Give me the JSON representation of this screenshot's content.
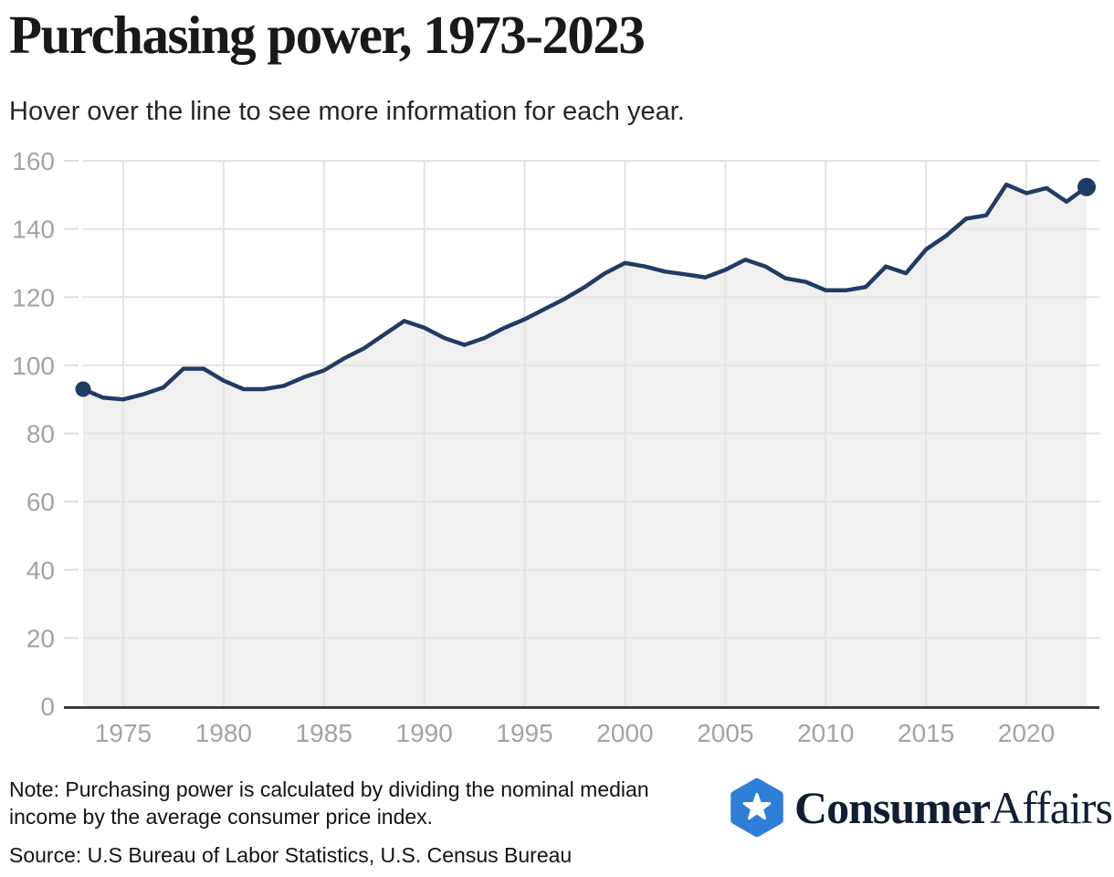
{
  "header": {
    "title": "Purchasing power, 1973-2023",
    "subtitle": "Hover over the line to see more information for each year."
  },
  "chart_data": {
    "type": "area",
    "title": "Purchasing power, 1973-2023",
    "x": [
      1973,
      1974,
      1975,
      1976,
      1977,
      1978,
      1979,
      1980,
      1981,
      1982,
      1983,
      1984,
      1985,
      1986,
      1987,
      1988,
      1989,
      1990,
      1991,
      1992,
      1993,
      1994,
      1995,
      1996,
      1997,
      1998,
      1999,
      2000,
      2001,
      2002,
      2003,
      2004,
      2005,
      2006,
      2007,
      2008,
      2009,
      2010,
      2011,
      2012,
      2013,
      2014,
      2015,
      2016,
      2017,
      2018,
      2019,
      2020,
      2021,
      2022,
      2023
    ],
    "values": [
      93,
      90.5,
      90,
      91.5,
      93.5,
      99,
      99,
      95.5,
      93,
      93,
      94,
      96.5,
      98.5,
      102,
      105,
      109,
      113,
      111,
      108,
      106,
      108,
      111,
      113.5,
      116.5,
      119.5,
      123,
      127,
      130,
      129,
      127.5,
      126.7,
      125.8,
      128,
      131,
      129,
      125.5,
      124.5,
      122,
      122,
      123,
      129,
      127,
      134,
      138,
      143,
      144,
      153,
      150.5,
      152,
      148,
      152.3
    ],
    "xlabel": "",
    "ylabel": "",
    "ylim": [
      0,
      160
    ],
    "yticks": [
      0,
      20,
      40,
      60,
      80,
      100,
      120,
      140,
      160
    ],
    "xticks": [
      1975,
      1980,
      1985,
      1990,
      1995,
      2000,
      2005,
      2010,
      2015,
      2020
    ],
    "grid": true,
    "legend": false,
    "markers": {
      "first_year": 1973,
      "last_year": 2023,
      "first_radius": 8.5,
      "last_radius": 10
    },
    "colors": {
      "line": "#1e3c66",
      "area": "#f0f0f0",
      "grid": "#e3e3e3",
      "tick": "#dcdcdc",
      "axis": "#3b3b3b",
      "tick_label": "#a3a3a3"
    }
  },
  "footer": {
    "note": "Note: Purchasing power is calculated by dividing the nominal median income by the average consumer price index.",
    "source": "Source: U.S Bureau of Labor Statistics, U.S. Census Bureau",
    "logo": {
      "brand_bold": "Consumer",
      "brand_regular": "Affairs",
      "hexagon_color": "#2f7ed8",
      "text_color": "#101d35",
      "star_icon": "star"
    }
  }
}
